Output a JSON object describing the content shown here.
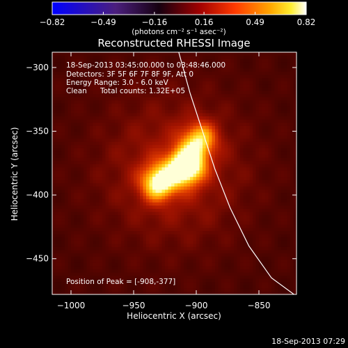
{
  "chart_data": {
    "type": "heatmap",
    "title": "Reconstructed RHESSI Image",
    "xlabel": "Heliocentric X (arcsec)",
    "ylabel": "Heliocentric Y (arcsec)",
    "xlim": [
      -1015,
      -820
    ],
    "ylim": [
      -478,
      -288
    ],
    "x_ticks": [
      {
        "value": -1000,
        "label": "−1000"
      },
      {
        "value": -950,
        "label": "−950"
      },
      {
        "value": -900,
        "label": "−900"
      },
      {
        "value": -850,
        "label": "−850"
      }
    ],
    "y_ticks": [
      {
        "value": -300,
        "label": "−300"
      },
      {
        "value": -350,
        "label": "−350"
      },
      {
        "value": -400,
        "label": "−400"
      },
      {
        "value": -450,
        "label": "−450"
      }
    ],
    "colorbar": {
      "min": -0.82,
      "max": 0.82,
      "colormap": "hot (black-blue-purple-red-orange-yellow-white)",
      "ticks": [
        {
          "value": -0.82,
          "label": "−0.82"
        },
        {
          "value": -0.49,
          "label": "−0.49"
        },
        {
          "value": -0.16,
          "label": "−0.16"
        },
        {
          "value": 0.16,
          "label": "0.16"
        },
        {
          "value": 0.49,
          "label": "0.49"
        },
        {
          "value": 0.82,
          "label": "0.82"
        }
      ],
      "unit_label": "(photons cm⁻² s⁻¹ asec⁻²)"
    },
    "annotations": {
      "time_range": "18-Sep-2013 03:45:00.000 to 03:48:46.000",
      "detectors": "Detectors: 3F 5F 6F 7F 8F 9F, Att 0",
      "energy_range": "Energy Range: 3.0 - 6.0 keV",
      "method": "Clean",
      "total_counts": "Total counts: 1.32E+05",
      "peak_position": "Position of Peak = [-908,-377]"
    },
    "peak": {
      "x": -908,
      "y": -377
    },
    "sources": [
      {
        "x": -908,
        "y": -377,
        "peak": 0.82
      },
      {
        "x": -930,
        "y": -390,
        "peak": 0.62
      },
      {
        "x": -897,
        "y": -356,
        "peak": 0.5
      }
    ],
    "limb": [
      {
        "x": -914,
        "y": -288
      },
      {
        "x": -905,
        "y": -320
      },
      {
        "x": -895,
        "y": -350
      },
      {
        "x": -885,
        "y": -380
      },
      {
        "x": -873,
        "y": -410
      },
      {
        "x": -858,
        "y": -440
      },
      {
        "x": -840,
        "y": -465
      },
      {
        "x": -822,
        "y": -478
      }
    ]
  },
  "timestamp": "18-Sep-2013 07:29"
}
